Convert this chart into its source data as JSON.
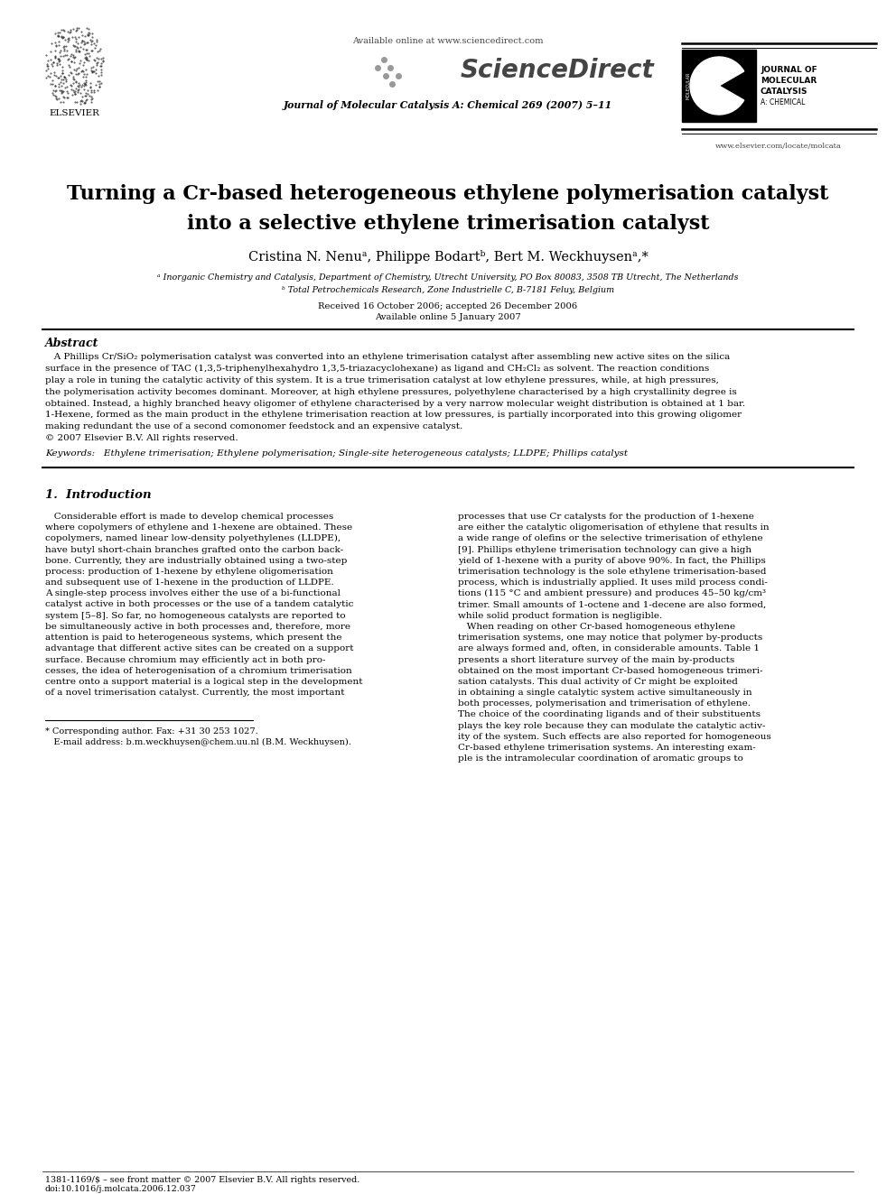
{
  "title_line1": "Turning a Cr-based heterogeneous ethylene polymerisation catalyst",
  "title_line2": "into a selective ethylene trimerisation catalyst",
  "authors": "Cristina N. Nenuᵃ, Philippe Bodartᵇ, Bert M. Weckhuysenᵃ,*",
  "affil_a": "ᵃ Inorganic Chemistry and Catalysis, Department of Chemistry, Utrecht University, PO Box 80083, 3508 TB Utrecht, The Netherlands",
  "affil_b": "ᵇ Total Petrochemicals Research, Zone Industrielle C, B-7181 Feluy, Belgium",
  "received": "Received 16 October 2006; accepted 26 December 2006",
  "available_date": "Available online 5 January 2007",
  "journal": "Journal of Molecular Catalysis A: Chemical 269 (2007) 5–11",
  "available_online": "Available online at www.sciencedirect.com",
  "website": "www.elsevier.com/locate/molcata",
  "elsevier_text": "ELSEVIER",
  "jmc_line1": "JOURNAL OF",
  "jmc_line2": "MOLECULAR",
  "jmc_line3": "CATALYSIS",
  "jmc_line4": "A: CHEMICAL",
  "sciencedirect": "ScienceDirect",
  "abstract_title": "Abstract",
  "abstract_text": "   A Phillips Cr/SiO₂ polymerisation catalyst was converted into an ethylene trimerisation catalyst after assembling new active sites on the silica\nsurface in the presence of TAC (1,3,5-triphenylhexahydro 1,3,5-triazacyclohexane) as ligand and CH₂Cl₂ as solvent. The reaction conditions\nplay a role in tuning the catalytic activity of this system. It is a true trimerisation catalyst at low ethylene pressures, while, at high pressures,\nthe polymerisation activity becomes dominant. Moreover, at high ethylene pressures, polyethylene characterised by a high crystallinity degree is\nobtained. Instead, a highly branched heavy oligomer of ethylene characterised by a very narrow molecular weight distribution is obtained at 1 bar.\n1-Hexene, formed as the main product in the ethylene trimerisation reaction at low pressures, is partially incorporated into this growing oligomer\nmaking redundant the use of a second comonomer feedstock and an expensive catalyst.\n© 2007 Elsevier B.V. All rights reserved.",
  "keywords": "Keywords:   Ethylene trimerisation; Ethylene polymerisation; Single-site heterogeneous catalysts; LLDPE; Phillips catalyst",
  "section1_title": "1.  Introduction",
  "section1_col1": "   Considerable effort is made to develop chemical processes\nwhere copolymers of ethylene and 1-hexene are obtained. These\ncopolymers, named linear low-density polyethylenes (LLDPE),\nhave butyl short-chain branches grafted onto the carbon back-\nbone. Currently, they are industrially obtained using a two-step\nprocess: production of 1-hexene by ethylene oligomerisation\nand subsequent use of 1-hexene in the production of LLDPE.\nA single-step process involves either the use of a bi-functional\ncatalyst active in both processes or the use of a tandem catalytic\nsystem [5–8]. So far, no homogeneous catalysts are reported to\nbe simultaneously active in both processes and, therefore, more\nattention is paid to heterogeneous systems, which present the\nadvantage that different active sites can be created on a support\nsurface. Because chromium may efficiently act in both pro-\ncesses, the idea of heterogenisation of a chromium trimerisation\ncentre onto a support material is a logical step in the development\nof a novel trimerisation catalyst. Currently, the most important",
  "section1_col2": "processes that use Cr catalysts for the production of 1-hexene\nare either the catalytic oligomerisation of ethylene that results in\na wide range of olefins or the selective trimerisation of ethylene\n[9]. Phillips ethylene trimerisation technology can give a high\nyield of 1-hexene with a purity of above 90%. In fact, the Phillips\ntrimerisation technology is the sole ethylene trimerisation-based\nprocess, which is industrially applied. It uses mild process condi-\ntions (115 °C and ambient pressure) and produces 45–50 kg/cm³\ntrimer. Small amounts of 1-octene and 1-decene are also formed,\nwhile solid product formation is negligible.\n   When reading on other Cr-based homogeneous ethylene\ntrimerisation systems, one may notice that polymer by-products\nare always formed and, often, in considerable amounts. Table 1\npresents a short literature survey of the main by-products\nobtained on the most important Cr-based homogeneous trimeri-\nsation catalysts. This dual activity of Cr might be exploited\nin obtaining a single catalytic system active simultaneously in\nboth processes, polymerisation and trimerisation of ethylene.\nThe choice of the coordinating ligands and of their substituents\nplays the key role because they can modulate the catalytic activ-\nity of the system. Such effects are also reported for homogeneous\nCr-based ethylene trimerisation systems. An interesting exam-\nple is the intramolecular coordination of aromatic groups to",
  "footnote1": "* Corresponding author. Fax: +31 30 253 1027.",
  "footnote2": "   E-mail address: b.m.weckhuysen@chem.uu.nl (B.M. Weckhuysen).",
  "footer1": "1381-1169/$ – see front matter © 2007 Elsevier B.V. All rights reserved.",
  "footer2": "doi:10.1016/j.molcata.2006.12.037",
  "bg_color": "#ffffff",
  "text_color": "#000000"
}
